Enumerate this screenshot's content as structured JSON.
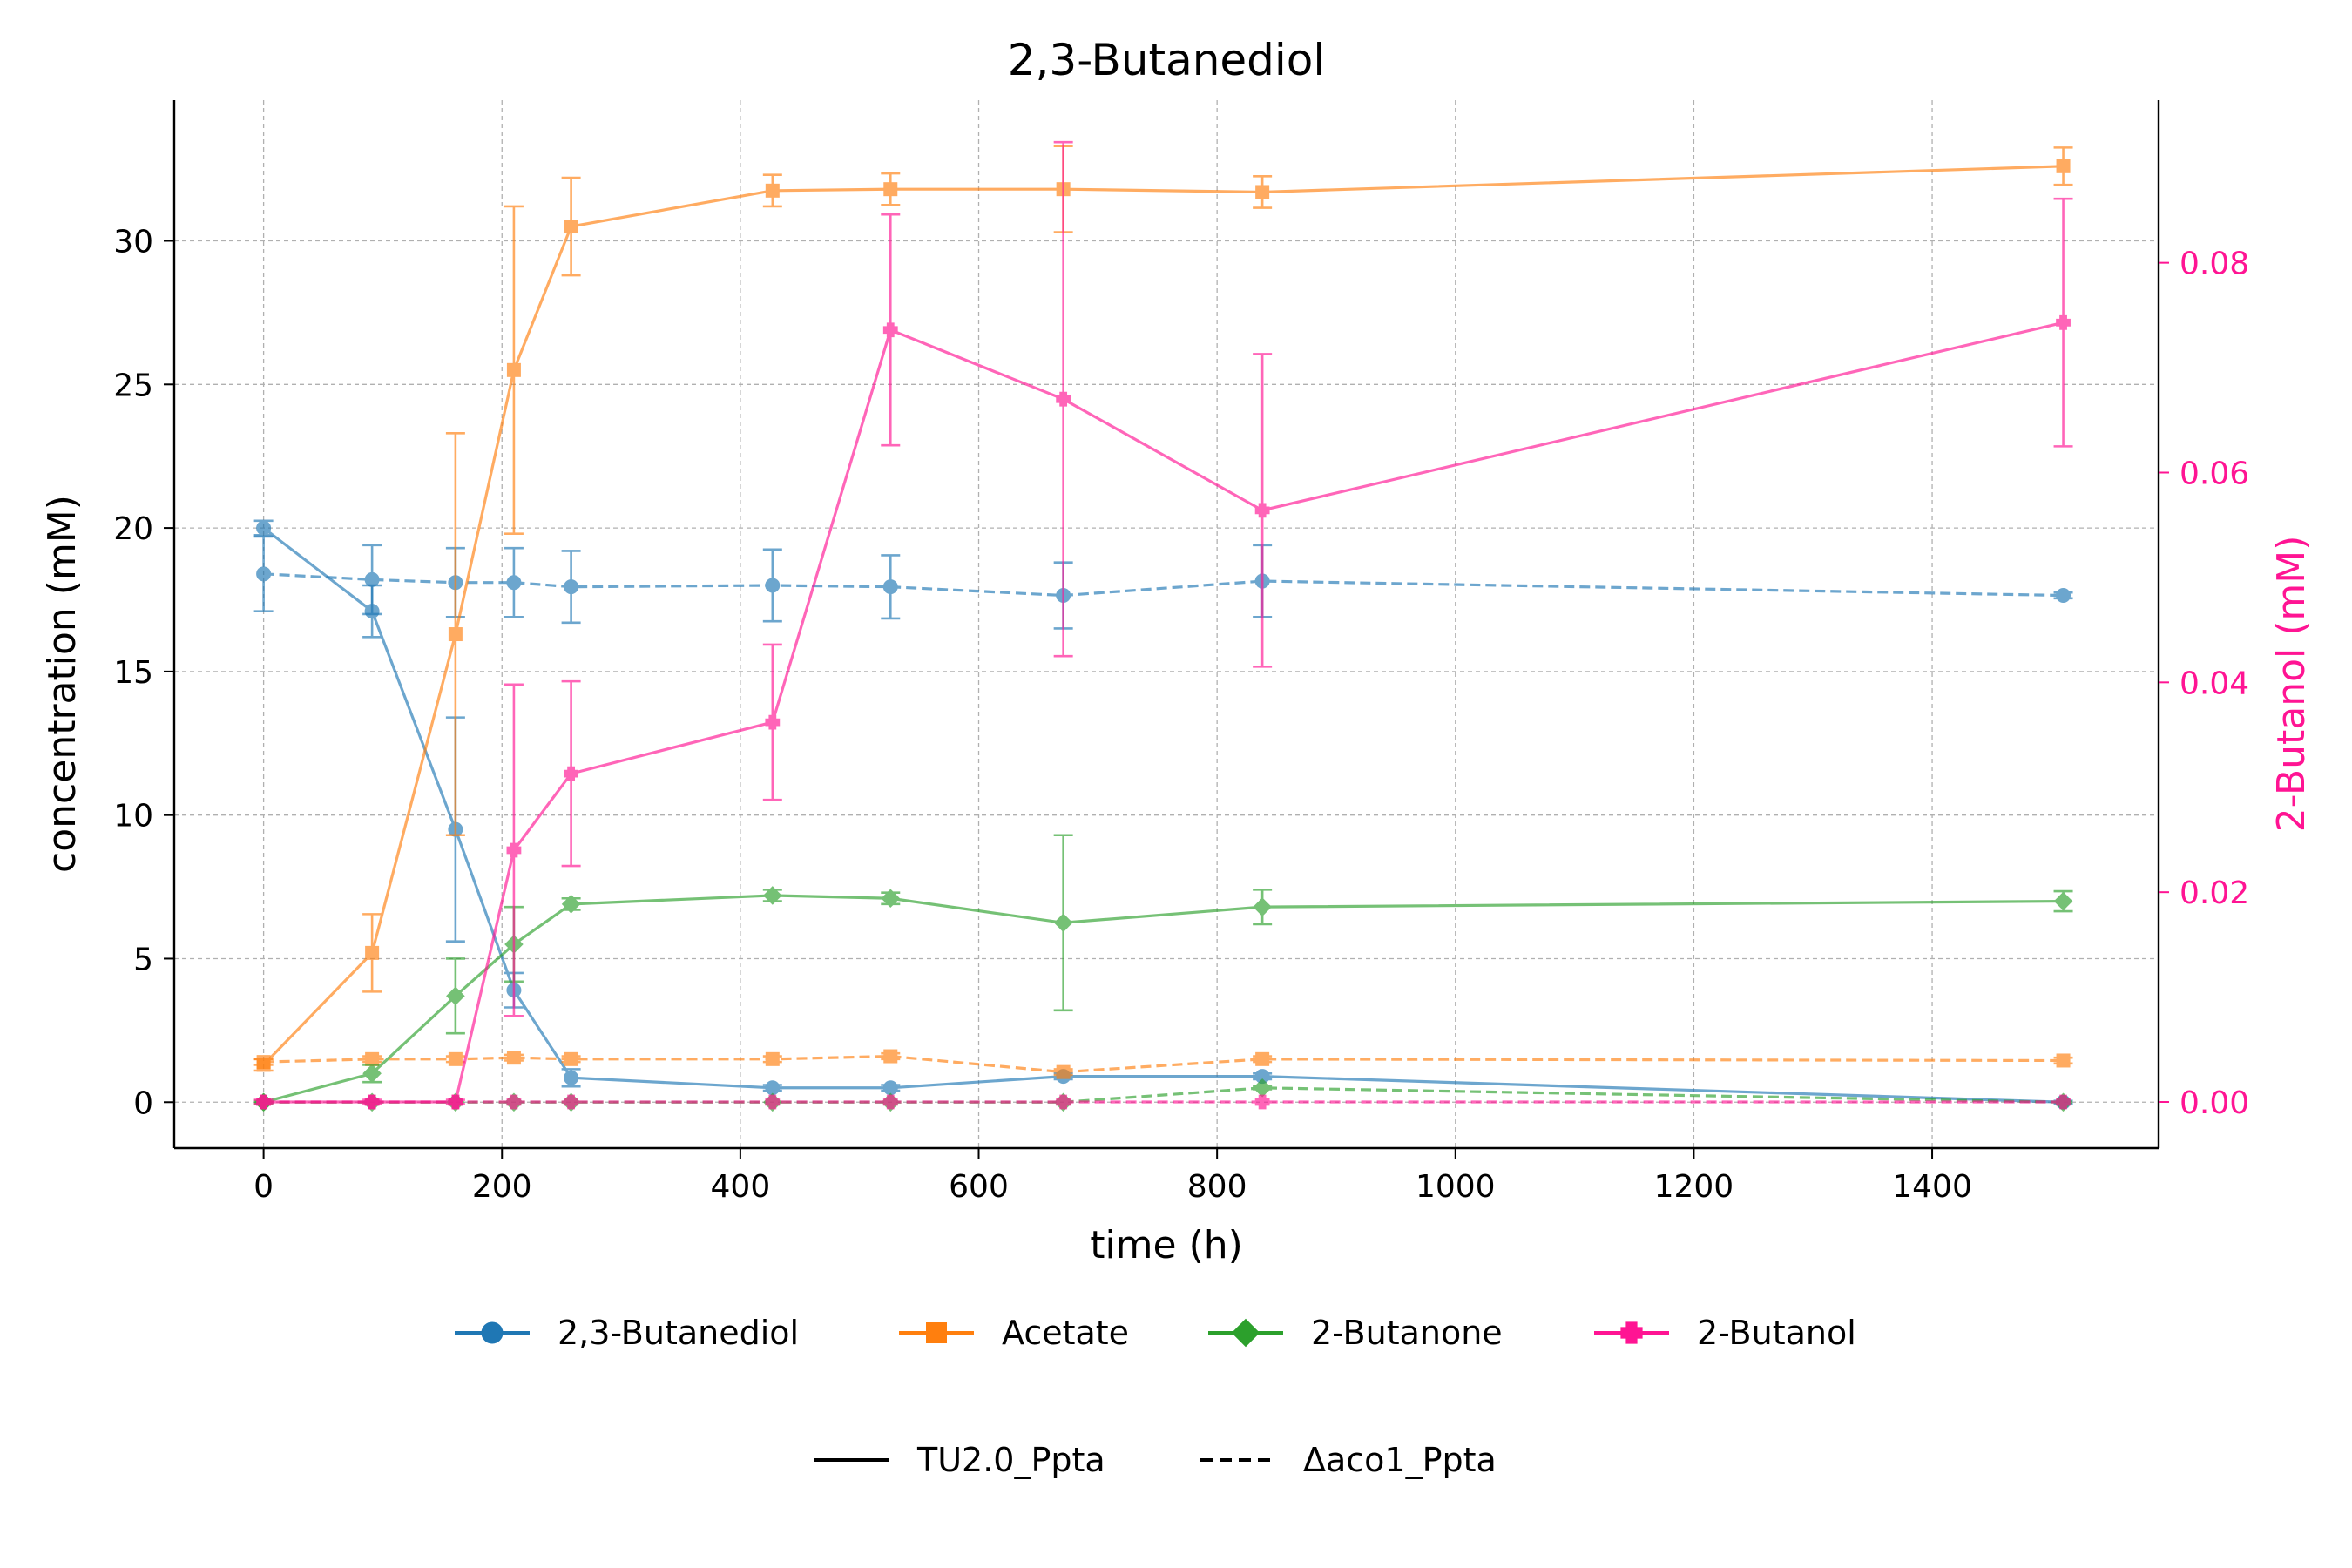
{
  "chart_data": {
    "type": "line",
    "title": "2,3-Butanediol",
    "xlabel": "time (h)",
    "ylabel": "concentration (mM)",
    "y2label": "2-Butanol (mM)",
    "xlim": [
      -75,
      1590
    ],
    "ylim": [
      -1.6,
      34.9
    ],
    "y2lim": [
      -0.0044,
      0.0955
    ],
    "xticks": [
      0,
      200,
      400,
      600,
      800,
      1000,
      1200,
      1400
    ],
    "yticks": [
      0,
      5,
      10,
      15,
      20,
      25,
      30
    ],
    "y2ticks": [
      0.0,
      0.02,
      0.04,
      0.06,
      0.08
    ],
    "y2tick_labels": [
      "0.00",
      "0.02",
      "0.04",
      "0.06",
      "0.08"
    ],
    "grid": true,
    "x": [
      0,
      91,
      161,
      210,
      258,
      427,
      526,
      671,
      838,
      1510
    ],
    "series": [
      {
        "name": "2,3-Butanediol",
        "strain": "TU2.0_Ppta",
        "axis": "left",
        "color": "#1f77b4",
        "marker": "circle",
        "dash": "solid",
        "values": [
          20.0,
          17.1,
          9.5,
          3.9,
          0.85,
          0.5,
          0.5,
          0.9,
          0.9,
          0.0
        ],
        "err": [
          0.25,
          0.9,
          3.9,
          0.6,
          0.3,
          0.1,
          0.1,
          0.1,
          0.1,
          0.05
        ]
      },
      {
        "name": "2,3-Butanediol",
        "strain": "Δaco1_Ppta",
        "axis": "left",
        "color": "#1f77b4",
        "marker": "circle",
        "dash": "dashed",
        "values": [
          18.4,
          18.2,
          18.1,
          18.1,
          17.95,
          18.0,
          17.95,
          17.65,
          18.15,
          17.65
        ],
        "err": [
          1.3,
          1.2,
          1.2,
          1.2,
          1.25,
          1.25,
          1.1,
          1.15,
          1.25,
          0.1
        ]
      },
      {
        "name": "Acetate",
        "strain": "TU2.0_Ppta",
        "axis": "left",
        "color": "#ff7f0e",
        "marker": "square",
        "dash": "solid",
        "values": [
          1.3,
          5.2,
          16.3,
          25.5,
          30.5,
          31.75,
          31.8,
          31.8,
          31.7,
          32.6
        ],
        "err": [
          0.2,
          1.35,
          7.0,
          5.7,
          1.7,
          0.55,
          0.55,
          1.5,
          0.55,
          0.65
        ]
      },
      {
        "name": "Acetate",
        "strain": "Δaco1_Ppta",
        "axis": "left",
        "color": "#ff7f0e",
        "marker": "square",
        "dash": "dashed",
        "values": [
          1.4,
          1.5,
          1.5,
          1.55,
          1.5,
          1.5,
          1.6,
          1.05,
          1.5,
          1.45
        ],
        "err": [
          0.1,
          0.1,
          0.1,
          0.1,
          0.1,
          0.1,
          0.1,
          0.1,
          0.1,
          0.1
        ]
      },
      {
        "name": "2-Butanone",
        "strain": "TU2.0_Ppta",
        "axis": "left",
        "color": "#2ca02c",
        "marker": "diamond",
        "dash": "solid",
        "values": [
          0.0,
          1.0,
          3.7,
          5.5,
          6.9,
          7.2,
          7.1,
          6.25,
          6.8,
          7.0
        ],
        "err": [
          0.05,
          0.3,
          1.3,
          1.3,
          0.2,
          0.2,
          0.2,
          3.05,
          0.6,
          0.35
        ]
      },
      {
        "name": "2-Butanone",
        "strain": "Δaco1_Ppta",
        "axis": "left",
        "color": "#2ca02c",
        "marker": "diamond",
        "dash": "dashed",
        "values": [
          0.0,
          0.0,
          0.0,
          0.0,
          0.0,
          0.0,
          0.0,
          0.0,
          0.5,
          0.0
        ],
        "err": [
          0,
          0,
          0,
          0,
          0,
          0,
          0,
          0,
          0.05,
          0
        ]
      },
      {
        "name": "2-Butanol",
        "strain": "TU2.0_Ppta",
        "axis": "right",
        "color": "#ff1493",
        "marker": "plus",
        "dash": "solid",
        "values": [
          0.0,
          0.0,
          0.0,
          0.024,
          0.0313,
          0.0362,
          0.0736,
          0.067,
          0.0564,
          0.0743
        ],
        "err": [
          0.0002,
          0.0002,
          0.0002,
          0.0158,
          0.0088,
          0.0074,
          0.011,
          0.0245,
          0.0149,
          0.0118
        ]
      },
      {
        "name": "2-Butanol",
        "strain": "Δaco1_Ppta",
        "axis": "right",
        "color": "#ff1493",
        "marker": "plus",
        "dash": "dashed",
        "values": [
          0.0,
          0.0,
          0.0,
          0.0,
          0.0,
          0.0,
          0.0,
          0.0,
          0.0,
          0.0
        ],
        "err": [
          0,
          0,
          0,
          0,
          0,
          0,
          0,
          0,
          0,
          0
        ]
      }
    ],
    "legend_compounds": [
      {
        "label": "2,3-Butanediol",
        "color": "#1f77b4",
        "marker": "circle"
      },
      {
        "label": "Acetate",
        "color": "#ff7f0e",
        "marker": "square"
      },
      {
        "label": "2-Butanone",
        "color": "#2ca02c",
        "marker": "diamond"
      },
      {
        "label": "2-Butanol",
        "color": "#ff1493",
        "marker": "plus"
      }
    ],
    "legend_strains": [
      {
        "label": "TU2.0_Ppta",
        "dash": "solid"
      },
      {
        "label": "Δaco1_Ppta",
        "dash": "dashed"
      }
    ],
    "legend_placement": "below"
  }
}
